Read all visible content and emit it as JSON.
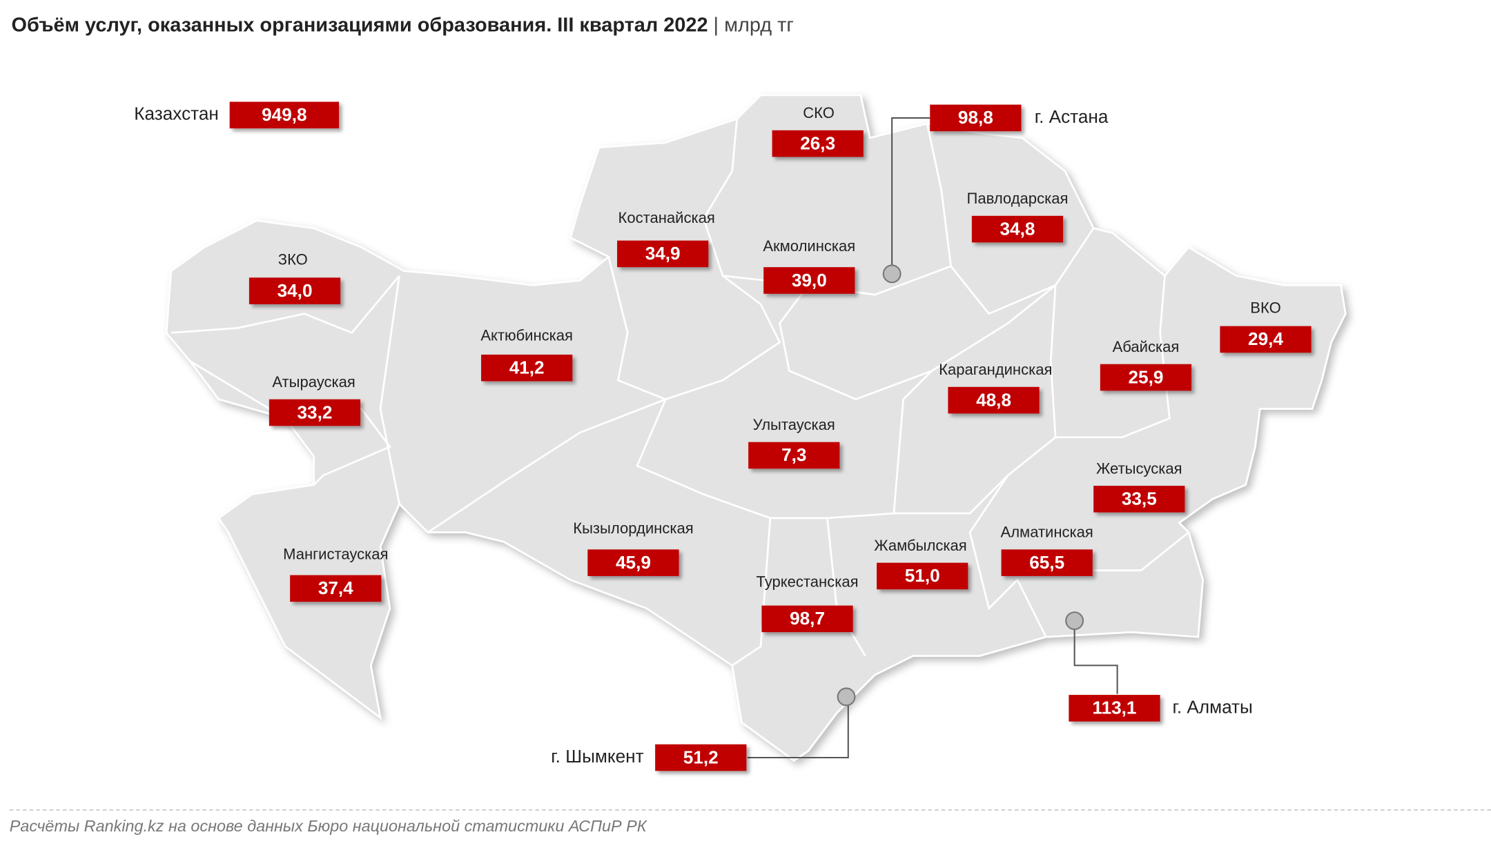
{
  "title": "Объём услуг, оказанных организациями образования. III квартал 2022",
  "unit": "млрд тг",
  "total": {
    "name": "Казахстан",
    "value": "949,8"
  },
  "regions": [
    {
      "name": "СКО",
      "value": "26,3"
    },
    {
      "name": "Павлодарская",
      "value": "34,8"
    },
    {
      "name": "Костанайская",
      "value": "34,9"
    },
    {
      "name": "Акмолинская",
      "value": "39,0"
    },
    {
      "name": "ЗКО",
      "value": "34,0"
    },
    {
      "name": "Актюбинская",
      "value": "41,2"
    },
    {
      "name": "Атырауская",
      "value": "33,2"
    },
    {
      "name": "ВКО",
      "value": "29,4"
    },
    {
      "name": "Абайская",
      "value": "25,9"
    },
    {
      "name": "Карагандинская",
      "value": "48,8"
    },
    {
      "name": "Улытауская",
      "value": "7,3"
    },
    {
      "name": "Жетысуская",
      "value": "33,5"
    },
    {
      "name": "Кызылординская",
      "value": "45,9"
    },
    {
      "name": "Жамбылская",
      "value": "51,0"
    },
    {
      "name": "Алматинская",
      "value": "65,5"
    },
    {
      "name": "Мангистауская",
      "value": "37,4"
    },
    {
      "name": "Туркестанская",
      "value": "98,7"
    }
  ],
  "cities": [
    {
      "name": "г. Астана",
      "value": "98,8"
    },
    {
      "name": "г. Алматы",
      "value": "113,1"
    },
    {
      "name": "г. Шымкент",
      "value": "51,2"
    }
  ],
  "source": "Расчёты Ranking.kz на основе данных Бюро национальной статистики АСПиР РК"
}
